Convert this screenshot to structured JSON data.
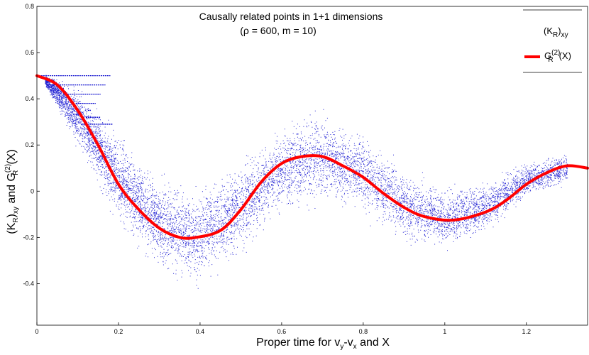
{
  "chart_data": {
    "type": "scatter",
    "title": "Causally related points in 1+1 dimensions",
    "subtitle": "(ρ = 600, m = 10)",
    "xlabel": {
      "main": "Proper time for v",
      "sub1": "y",
      "mid": "-v",
      "sub2": "x",
      "tail": " and X"
    },
    "ylabel": {
      "p1": "(K",
      "s1": "R",
      "p2": ")",
      "s2": "xy",
      "p3": " and G",
      "sup": "(2)",
      "s3": "R",
      "p4": "(X)"
    },
    "xlim": [
      0,
      1.35
    ],
    "ylim": [
      -0.58,
      0.8
    ],
    "xticks": [
      0,
      0.2,
      0.4,
      0.6,
      0.8,
      1,
      1.2
    ],
    "xtick_labels": [
      "0",
      "0.2",
      "0.4",
      "0.6",
      "0.8",
      "1",
      "1.2"
    ],
    "yticks": [
      0.8,
      0.6,
      0.4,
      0.2,
      0,
      -0.2,
      -0.4
    ],
    "ytick_labels": [
      "0.8",
      "0.6",
      "0.4",
      "0.2",
      "0",
      "-0.2",
      "-0.4"
    ],
    "legend": {
      "position": "top-right",
      "scatter_label": {
        "p1": "(K",
        "s1": "R",
        "p2": ")",
        "s2": "xy"
      },
      "line_label": {
        "p1": "G",
        "sup": "(2)",
        "s1": "R",
        "p2": "(X)"
      }
    },
    "series": [
      {
        "name": "(K_R)_xy",
        "kind": "scatter",
        "color": "#0000cc",
        "envelope_x": [
          0.02,
          0.1,
          0.2,
          0.3,
          0.39,
          0.5,
          0.6,
          0.7,
          0.8,
          0.9,
          1.0,
          1.1,
          1.2,
          1.3
        ],
        "envelope_center": [
          0.48,
          0.32,
          0.05,
          -0.14,
          -0.2,
          -0.07,
          0.09,
          0.15,
          0.08,
          -0.06,
          -0.12,
          -0.07,
          0.05,
          0.1
        ],
        "envelope_halfwidth": [
          0.02,
          0.1,
          0.14,
          0.15,
          0.16,
          0.15,
          0.14,
          0.15,
          0.13,
          0.12,
          0.1,
          0.08,
          0.06,
          0.05
        ],
        "band_levels": [
          0.5,
          0.46,
          0.42,
          0.38,
          0.35,
          0.32,
          0.29
        ]
      },
      {
        "name": "G_R^(2)(X)",
        "kind": "line",
        "color": "#ff0000",
        "x": [
          0,
          0.05,
          0.1,
          0.15,
          0.2,
          0.25,
          0.3,
          0.35,
          0.39,
          0.45,
          0.5,
          0.55,
          0.6,
          0.65,
          0.7,
          0.75,
          0.8,
          0.85,
          0.9,
          0.95,
          1.02,
          1.1,
          1.15,
          1.2,
          1.25,
          1.3,
          1.35
        ],
        "y": [
          0.5,
          0.46,
          0.35,
          0.2,
          0.03,
          -0.08,
          -0.16,
          -0.2,
          -0.2,
          -0.17,
          -0.08,
          0.04,
          0.12,
          0.15,
          0.15,
          0.11,
          0.06,
          -0.01,
          -0.07,
          -0.11,
          -0.125,
          -0.09,
          -0.04,
          0.03,
          0.08,
          0.11,
          0.1
        ]
      }
    ]
  }
}
